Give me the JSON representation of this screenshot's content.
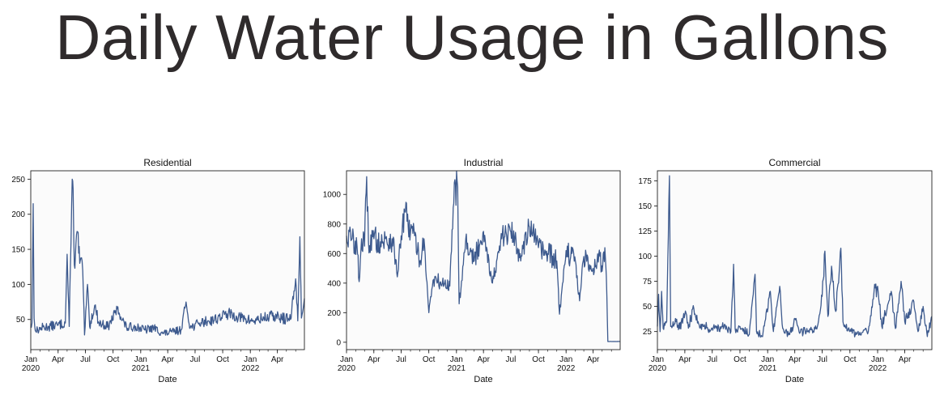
{
  "page": {
    "title": "Daily Water Usage in Gallons"
  },
  "colors": {
    "line": "#3d5a8e",
    "plot_background": "#fbfbfb",
    "frame": "#222222"
  },
  "chart_data": [
    {
      "type": "line",
      "title": "Residential",
      "xlabel": "Date",
      "ylabel": "",
      "x_range": [
        "2020-01-01",
        "2022-06-30"
      ],
      "ylim": [
        7,
        262
      ],
      "y_ticks": [
        50,
        100,
        150,
        200,
        250
      ],
      "x_ticks": [
        {
          "date": "2020-01-01",
          "label": "Jan",
          "sublabel": "2020"
        },
        {
          "date": "2020-04-01",
          "label": "Apr"
        },
        {
          "date": "2020-07-01",
          "label": "Jul"
        },
        {
          "date": "2020-10-01",
          "label": "Oct"
        },
        {
          "date": "2021-01-01",
          "label": "Jan",
          "sublabel": "2021"
        },
        {
          "date": "2021-04-01",
          "label": "Apr"
        },
        {
          "date": "2021-07-01",
          "label": "Jul"
        },
        {
          "date": "2021-10-01",
          "label": "Oct"
        },
        {
          "date": "2022-01-01",
          "label": "Jan",
          "sublabel": "2022"
        },
        {
          "date": "2022-04-01",
          "label": "Apr"
        }
      ],
      "series": [
        {
          "values": [
            [
              "2020-01-01",
              40
            ],
            [
              "2020-01-05",
              45
            ],
            [
              "2020-01-09",
              215
            ],
            [
              "2020-01-12",
              52
            ],
            [
              "2020-01-18",
              33
            ],
            [
              "2020-02-05",
              38
            ],
            [
              "2020-03-01",
              40
            ],
            [
              "2020-04-01",
              42
            ],
            [
              "2020-04-25",
              45
            ],
            [
              "2020-05-01",
              143
            ],
            [
              "2020-05-08",
              40
            ],
            [
              "2020-05-18",
              250
            ],
            [
              "2020-05-21",
              236
            ],
            [
              "2020-05-25",
              128
            ],
            [
              "2020-06-05",
              175
            ],
            [
              "2020-06-12",
              130
            ],
            [
              "2020-06-18",
              138
            ],
            [
              "2020-06-24",
              92
            ],
            [
              "2020-06-28",
              28
            ],
            [
              "2020-07-08",
              100
            ],
            [
              "2020-07-15",
              40
            ],
            [
              "2020-08-01",
              70
            ],
            [
              "2020-08-15",
              45
            ],
            [
              "2020-09-15",
              40
            ],
            [
              "2020-10-15",
              65
            ],
            [
              "2020-11-15",
              38
            ],
            [
              "2020-12-15",
              40
            ],
            [
              "2021-01-15",
              35
            ],
            [
              "2021-02-15",
              38
            ],
            [
              "2021-03-15",
              30
            ],
            [
              "2021-04-15",
              32
            ],
            [
              "2021-05-15",
              35
            ],
            [
              "2021-06-01",
              75
            ],
            [
              "2021-06-15",
              38
            ],
            [
              "2021-07-15",
              45
            ],
            [
              "2021-08-15",
              48
            ],
            [
              "2021-09-15",
              52
            ],
            [
              "2021-10-15",
              58
            ],
            [
              "2021-11-15",
              55
            ],
            [
              "2021-12-15",
              50
            ],
            [
              "2022-01-15",
              48
            ],
            [
              "2022-02-15",
              52
            ],
            [
              "2022-03-15",
              55
            ],
            [
              "2022-04-15",
              52
            ],
            [
              "2022-05-15",
              50
            ],
            [
              "2022-06-01",
              108
            ],
            [
              "2022-06-08",
              48
            ],
            [
              "2022-06-15",
              168
            ],
            [
              "2022-06-20",
              52
            ],
            [
              "2022-06-30",
              80
            ]
          ]
        }
      ]
    },
    {
      "type": "line",
      "title": "Industrial",
      "xlabel": "Date",
      "ylabel": "",
      "x_range": [
        "2020-01-01",
        "2022-06-30"
      ],
      "ylim": [
        -50,
        1160
      ],
      "y_ticks": [
        0,
        200,
        400,
        600,
        800,
        1000
      ],
      "x_ticks": [
        {
          "date": "2020-01-01",
          "label": "Jan",
          "sublabel": "2020"
        },
        {
          "date": "2020-04-01",
          "label": "Apr"
        },
        {
          "date": "2020-07-01",
          "label": "Jul"
        },
        {
          "date": "2020-10-01",
          "label": "Oct"
        },
        {
          "date": "2021-01-01",
          "label": "Jan",
          "sublabel": "2021"
        },
        {
          "date": "2021-04-01",
          "label": "Apr"
        },
        {
          "date": "2021-07-01",
          "label": "Jul"
        },
        {
          "date": "2021-10-01",
          "label": "Oct"
        },
        {
          "date": "2022-01-01",
          "label": "Jan",
          "sublabel": "2022"
        },
        {
          "date": "2022-04-01",
          "label": "Apr"
        }
      ],
      "series": [
        {
          "values": [
            [
              "2020-01-01",
              720
            ],
            [
              "2020-01-20",
              700
            ],
            [
              "2020-02-05",
              650
            ],
            [
              "2020-02-12",
              410
            ],
            [
              "2020-02-20",
              700
            ],
            [
              "2020-03-01",
              650
            ],
            [
              "2020-03-08",
              1120
            ],
            [
              "2020-03-14",
              680
            ],
            [
              "2020-04-01",
              700
            ],
            [
              "2020-05-01",
              680
            ],
            [
              "2020-06-01",
              700
            ],
            [
              "2020-06-20",
              470
            ],
            [
              "2020-07-01",
              720
            ],
            [
              "2020-07-15",
              880
            ],
            [
              "2020-08-01",
              740
            ],
            [
              "2020-08-15",
              720
            ],
            [
              "2020-09-01",
              550
            ],
            [
              "2020-09-15",
              700
            ],
            [
              "2020-10-01",
              200
            ],
            [
              "2020-10-15",
              420
            ],
            [
              "2020-11-15",
              400
            ],
            [
              "2020-12-10",
              380
            ],
            [
              "2020-12-25",
              1080
            ],
            [
              "2021-01-05",
              1050
            ],
            [
              "2021-01-10",
              260
            ],
            [
              "2021-02-01",
              700
            ],
            [
              "2021-03-01",
              550
            ],
            [
              "2021-04-01",
              750
            ],
            [
              "2021-05-01",
              400
            ],
            [
              "2021-06-01",
              700
            ],
            [
              "2021-07-01",
              750
            ],
            [
              "2021-08-01",
              600
            ],
            [
              "2021-09-01",
              780
            ],
            [
              "2021-10-01",
              640
            ],
            [
              "2021-11-01",
              600
            ],
            [
              "2021-12-01",
              550
            ],
            [
              "2021-12-10",
              190
            ],
            [
              "2022-01-01",
              620
            ],
            [
              "2022-02-01",
              550
            ],
            [
              "2022-02-15",
              280
            ],
            [
              "2022-03-01",
              580
            ],
            [
              "2022-04-01",
              500
            ],
            [
              "2022-04-20",
              600
            ],
            [
              "2022-05-01",
              480
            ],
            [
              "2022-05-10",
              640
            ],
            [
              "2022-05-15",
              450
            ],
            [
              "2022-05-20",
              5
            ],
            [
              "2022-06-30",
              5
            ]
          ]
        }
      ]
    },
    {
      "type": "line",
      "title": "Commercial",
      "xlabel": "Date",
      "ylabel": "",
      "x_range": [
        "2020-01-01",
        "2022-06-30"
      ],
      "ylim": [
        7,
        185
      ],
      "y_ticks": [
        25,
        50,
        75,
        100,
        125,
        150,
        175
      ],
      "x_ticks": [
        {
          "date": "2020-01-01",
          "label": "Jan",
          "sublabel": "2020"
        },
        {
          "date": "2020-04-01",
          "label": "Apr"
        },
        {
          "date": "2020-07-01",
          "label": "Jul"
        },
        {
          "date": "2020-10-01",
          "label": "Oct"
        },
        {
          "date": "2021-01-01",
          "label": "Jan",
          "sublabel": "2021"
        },
        {
          "date": "2021-04-01",
          "label": "Apr"
        },
        {
          "date": "2021-07-01",
          "label": "Jul"
        },
        {
          "date": "2021-10-01",
          "label": "Oct"
        },
        {
          "date": "2022-01-01",
          "label": "Jan",
          "sublabel": "2022"
        },
        {
          "date": "2022-04-01",
          "label": "Apr"
        }
      ],
      "series": [
        {
          "values": [
            [
              "2020-01-01",
              30
            ],
            [
              "2020-01-05",
              62
            ],
            [
              "2020-01-10",
              25
            ],
            [
              "2020-01-15",
              65
            ],
            [
              "2020-01-20",
              28
            ],
            [
              "2020-02-01",
              35
            ],
            [
              "2020-02-10",
              180
            ],
            [
              "2020-02-14",
              30
            ],
            [
              "2020-03-01",
              38
            ],
            [
              "2020-03-15",
              28
            ],
            [
              "2020-04-01",
              42
            ],
            [
              "2020-04-15",
              32
            ],
            [
              "2020-05-01",
              48
            ],
            [
              "2020-05-15",
              35
            ],
            [
              "2020-06-01",
              30
            ],
            [
              "2020-07-01",
              28
            ],
            [
              "2020-08-01",
              30
            ],
            [
              "2020-09-01",
              25
            ],
            [
              "2020-09-10",
              92
            ],
            [
              "2020-09-15",
              28
            ],
            [
              "2020-10-01",
              30
            ],
            [
              "2020-11-01",
              22
            ],
            [
              "2020-11-20",
              82
            ],
            [
              "2020-11-25",
              25
            ],
            [
              "2020-12-15",
              20
            ],
            [
              "2021-01-10",
              65
            ],
            [
              "2021-01-20",
              25
            ],
            [
              "2021-02-10",
              70
            ],
            [
              "2021-02-20",
              28
            ],
            [
              "2021-03-15",
              22
            ],
            [
              "2021-04-05",
              38
            ],
            [
              "2021-04-15",
              25
            ],
            [
              "2021-05-15",
              25
            ],
            [
              "2021-06-15",
              30
            ],
            [
              "2021-07-01",
              60
            ],
            [
              "2021-07-10",
              105
            ],
            [
              "2021-07-20",
              40
            ],
            [
              "2021-08-01",
              90
            ],
            [
              "2021-08-15",
              45
            ],
            [
              "2021-09-01",
              108
            ],
            [
              "2021-09-08",
              35
            ],
            [
              "2021-10-01",
              25
            ],
            [
              "2021-11-01",
              22
            ],
            [
              "2021-12-01",
              25
            ],
            [
              "2021-12-20",
              65
            ],
            [
              "2022-01-01",
              70
            ],
            [
              "2022-01-15",
              30
            ],
            [
              "2022-02-15",
              65
            ],
            [
              "2022-03-01",
              28
            ],
            [
              "2022-03-20",
              75
            ],
            [
              "2022-04-01",
              35
            ],
            [
              "2022-05-01",
              55
            ],
            [
              "2022-05-15",
              25
            ],
            [
              "2022-06-01",
              50
            ],
            [
              "2022-06-15",
              20
            ],
            [
              "2022-06-30",
              40
            ]
          ]
        }
      ]
    }
  ]
}
